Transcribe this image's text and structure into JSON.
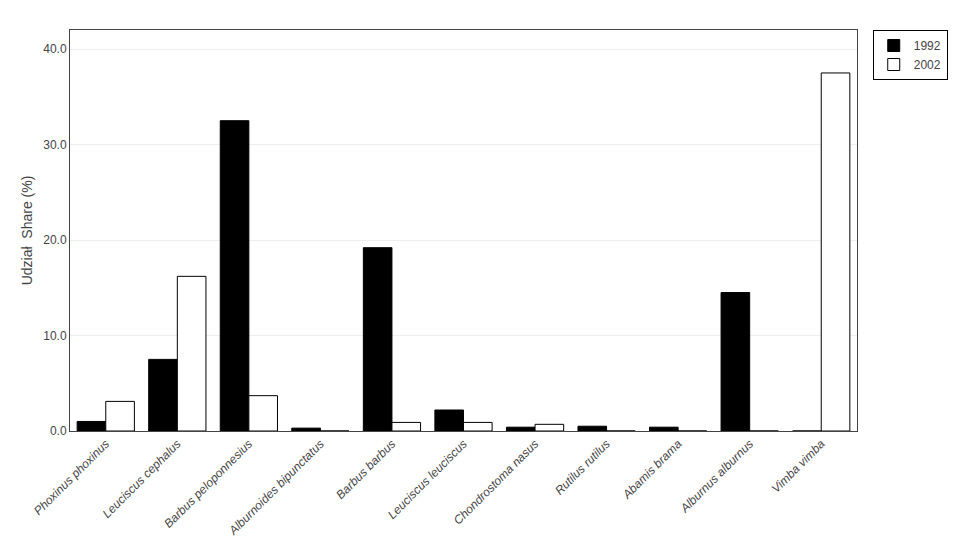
{
  "chart_data": {
    "type": "bar",
    "categories": [
      "Phoxinus phoxinus",
      "Leuciscus cephalus",
      "Barbus peloponnesius",
      "Alburnoides bipunctatus",
      "Barbus barbus",
      "Leuciscus leuciscus",
      "Chondrostoma nasus",
      "Rutilus rutilus",
      "Abamis brama",
      "Alburnus alburnus",
      "Vimba vimba"
    ],
    "series": [
      {
        "name": "1992",
        "color": "#000000",
        "values": [
          1.0,
          7.5,
          32.5,
          0.3,
          19.2,
          2.2,
          0.4,
          0.5,
          0.4,
          14.5,
          0.0
        ]
      },
      {
        "name": "2002",
        "color": "#ffffff",
        "values": [
          3.1,
          16.2,
          3.7,
          0.0,
          0.9,
          0.9,
          0.7,
          0.0,
          0.0,
          0.0,
          37.5
        ]
      }
    ],
    "ylabel": "Udział  Share (%)",
    "ylim": [
      0,
      42
    ],
    "yticks": [
      {
        "value": 0,
        "label": "0.0"
      },
      {
        "value": 10,
        "label": "10.0"
      },
      {
        "value": 20,
        "label": "20.0"
      },
      {
        "value": 30,
        "label": "30.0"
      },
      {
        "value": 40,
        "label": "40.0"
      }
    ],
    "grid": true,
    "legend": "upper right"
  }
}
